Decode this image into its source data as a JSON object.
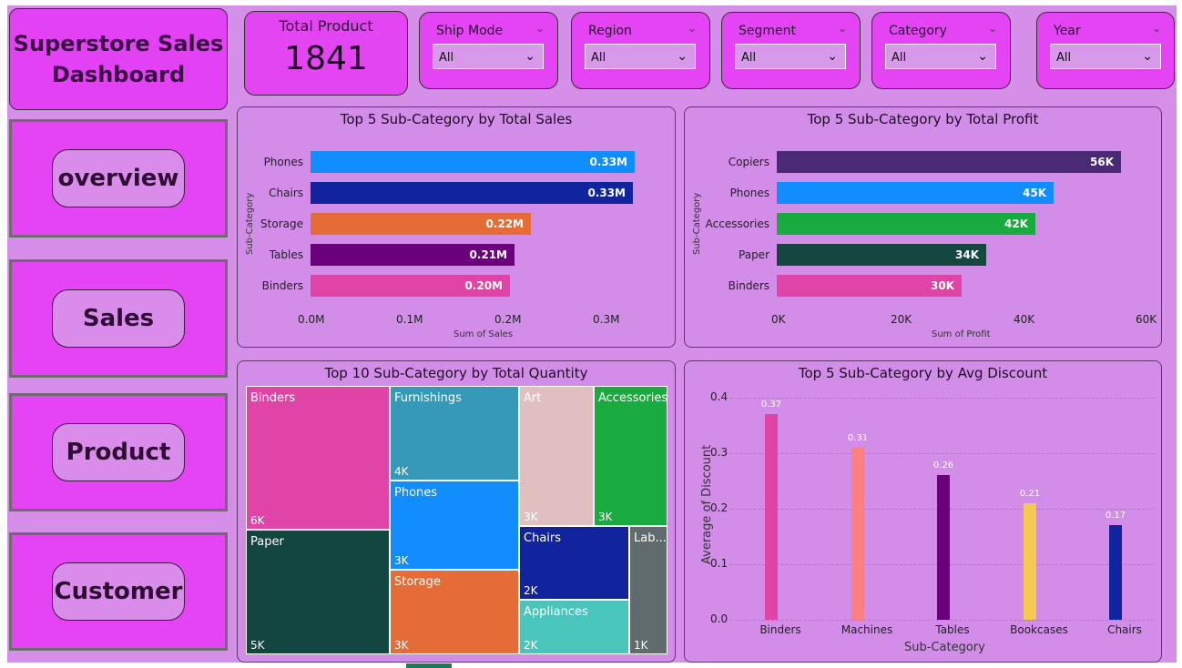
{
  "dashboard": {
    "title": "Superstore Sales\nDashboard"
  },
  "nav": {
    "items": [
      {
        "label": "overview"
      },
      {
        "label": "Sales"
      },
      {
        "label": "Product"
      },
      {
        "label": "Customer"
      }
    ]
  },
  "kpi": {
    "label": "Total Product",
    "value": "1841"
  },
  "slicers": [
    {
      "label": "Ship Mode",
      "value": "All"
    },
    {
      "label": "Region",
      "value": "All"
    },
    {
      "label": "Segment",
      "value": "All"
    },
    {
      "label": "Category",
      "value": "All"
    },
    {
      "label": "Year",
      "value": "All"
    }
  ],
  "charts": {
    "sales": {
      "title": "Top 5 Sub-Category by Total Sales",
      "xlabel": "Sum of Sales",
      "ylabel": "Sub-Category",
      "ticks": [
        "0.0M",
        "0.1M",
        "0.2M",
        "0.3M"
      ],
      "rows": [
        {
          "name": "Phones",
          "label": "0.33M",
          "color": "#118dff"
        },
        {
          "name": "Chairs",
          "label": "0.33M",
          "color": "#12239e"
        },
        {
          "name": "Storage",
          "label": "0.22M",
          "color": "#e66c37"
        },
        {
          "name": "Tables",
          "label": "0.21M",
          "color": "#6b007b"
        },
        {
          "name": "Binders",
          "label": "0.20M",
          "color": "#e044a7"
        }
      ]
    },
    "profit": {
      "title": "Top 5 Sub-Category by Total Profit",
      "xlabel": "Sum of Profit",
      "ylabel": "Sub-Category",
      "ticks": [
        "0K",
        "20K",
        "40K",
        "60K"
      ],
      "rows": [
        {
          "name": "Copiers",
          "label": "56K",
          "color": "#4a2a75"
        },
        {
          "name": "Phones",
          "label": "45K",
          "color": "#118dff"
        },
        {
          "name": "Accessories",
          "label": "42K",
          "color": "#1aab40"
        },
        {
          "name": "Paper",
          "label": "34K",
          "color": "#15463f"
        },
        {
          "name": "Binders",
          "label": "30K",
          "color": "#e044a7"
        }
      ]
    },
    "quantity": {
      "title": "Top 10 Sub-Category by Total Quantity",
      "tiles": [
        {
          "name": "Binders",
          "label": "6K",
          "color": "#e044a7"
        },
        {
          "name": "Furnishings",
          "label": "4K",
          "color": "#3599b8"
        },
        {
          "name": "Art",
          "label": "3K",
          "color": "#dfbfbf"
        },
        {
          "name": "Accessories",
          "label": "3K",
          "color": "#1aab40"
        },
        {
          "name": "Phones",
          "label": "3K",
          "color": "#118dff"
        },
        {
          "name": "Paper",
          "label": "5K",
          "color": "#134640"
        },
        {
          "name": "Chairs",
          "label": "2K",
          "color": "#12239e"
        },
        {
          "name": "Lab...",
          "label": "1K",
          "color": "#5f6b6d"
        },
        {
          "name": "Storage",
          "label": "3K",
          "color": "#e66c37"
        },
        {
          "name": "Appliances",
          "label": "2K",
          "color": "#4ac5bb"
        }
      ]
    },
    "discount": {
      "title": "Top 5 Sub-Category by Avg Discount",
      "xlabel": "Sub-Category",
      "ylabel": "Average of Discount",
      "yticks": [
        "0.4",
        "0.3",
        "0.2",
        "0.1",
        "0.0"
      ],
      "bars": [
        {
          "name": "Binders",
          "label": "0.37",
          "color": "#e044a7"
        },
        {
          "name": "Machines",
          "label": "0.31",
          "color": "#fd8080"
        },
        {
          "name": "Tables",
          "label": "0.26",
          "color": "#6b007b"
        },
        {
          "name": "Bookcases",
          "label": "0.21",
          "color": "#f5c94f"
        },
        {
          "name": "Chairs",
          "label": "0.17",
          "color": "#12239e"
        }
      ]
    }
  },
  "chart_data": [
    {
      "type": "bar",
      "title": "Top 5 Sub-Category by Total Sales",
      "orientation": "horizontal",
      "categories": [
        "Phones",
        "Chairs",
        "Storage",
        "Tables",
        "Binders"
      ],
      "values": [
        330000,
        328000,
        224000,
        207000,
        203000
      ],
      "xlabel": "Sum of Sales",
      "ylabel": "Sub-Category",
      "xlim": [
        0,
        350000
      ],
      "grid": false
    },
    {
      "type": "bar",
      "title": "Top 5 Sub-Category by Total Profit",
      "orientation": "horizontal",
      "categories": [
        "Copiers",
        "Phones",
        "Accessories",
        "Paper",
        "Binders"
      ],
      "values": [
        56000,
        45000,
        42000,
        34000,
        30000
      ],
      "xlabel": "Sum of Profit",
      "ylabel": "Sub-Category",
      "xlim": [
        0,
        60000
      ],
      "grid": false
    },
    {
      "type": "heatmap",
      "title": "Top 10 Sub-Category by Total Quantity",
      "categories": [
        "Binders",
        "Paper",
        "Furnishings",
        "Phones",
        "Storage",
        "Art",
        "Accessories",
        "Chairs",
        "Appliances",
        "Labels"
      ],
      "values": [
        6000,
        5000,
        4000,
        3000,
        3000,
        3000,
        3000,
        2000,
        2000,
        1000
      ]
    },
    {
      "type": "bar",
      "title": "Top 5 Sub-Category by Avg Discount",
      "categories": [
        "Binders",
        "Machines",
        "Tables",
        "Bookcases",
        "Chairs"
      ],
      "values": [
        0.37,
        0.31,
        0.26,
        0.21,
        0.17
      ],
      "xlabel": "Sub-Category",
      "ylabel": "Average of Discount",
      "ylim": [
        0,
        0.4
      ],
      "grid": true
    }
  ]
}
